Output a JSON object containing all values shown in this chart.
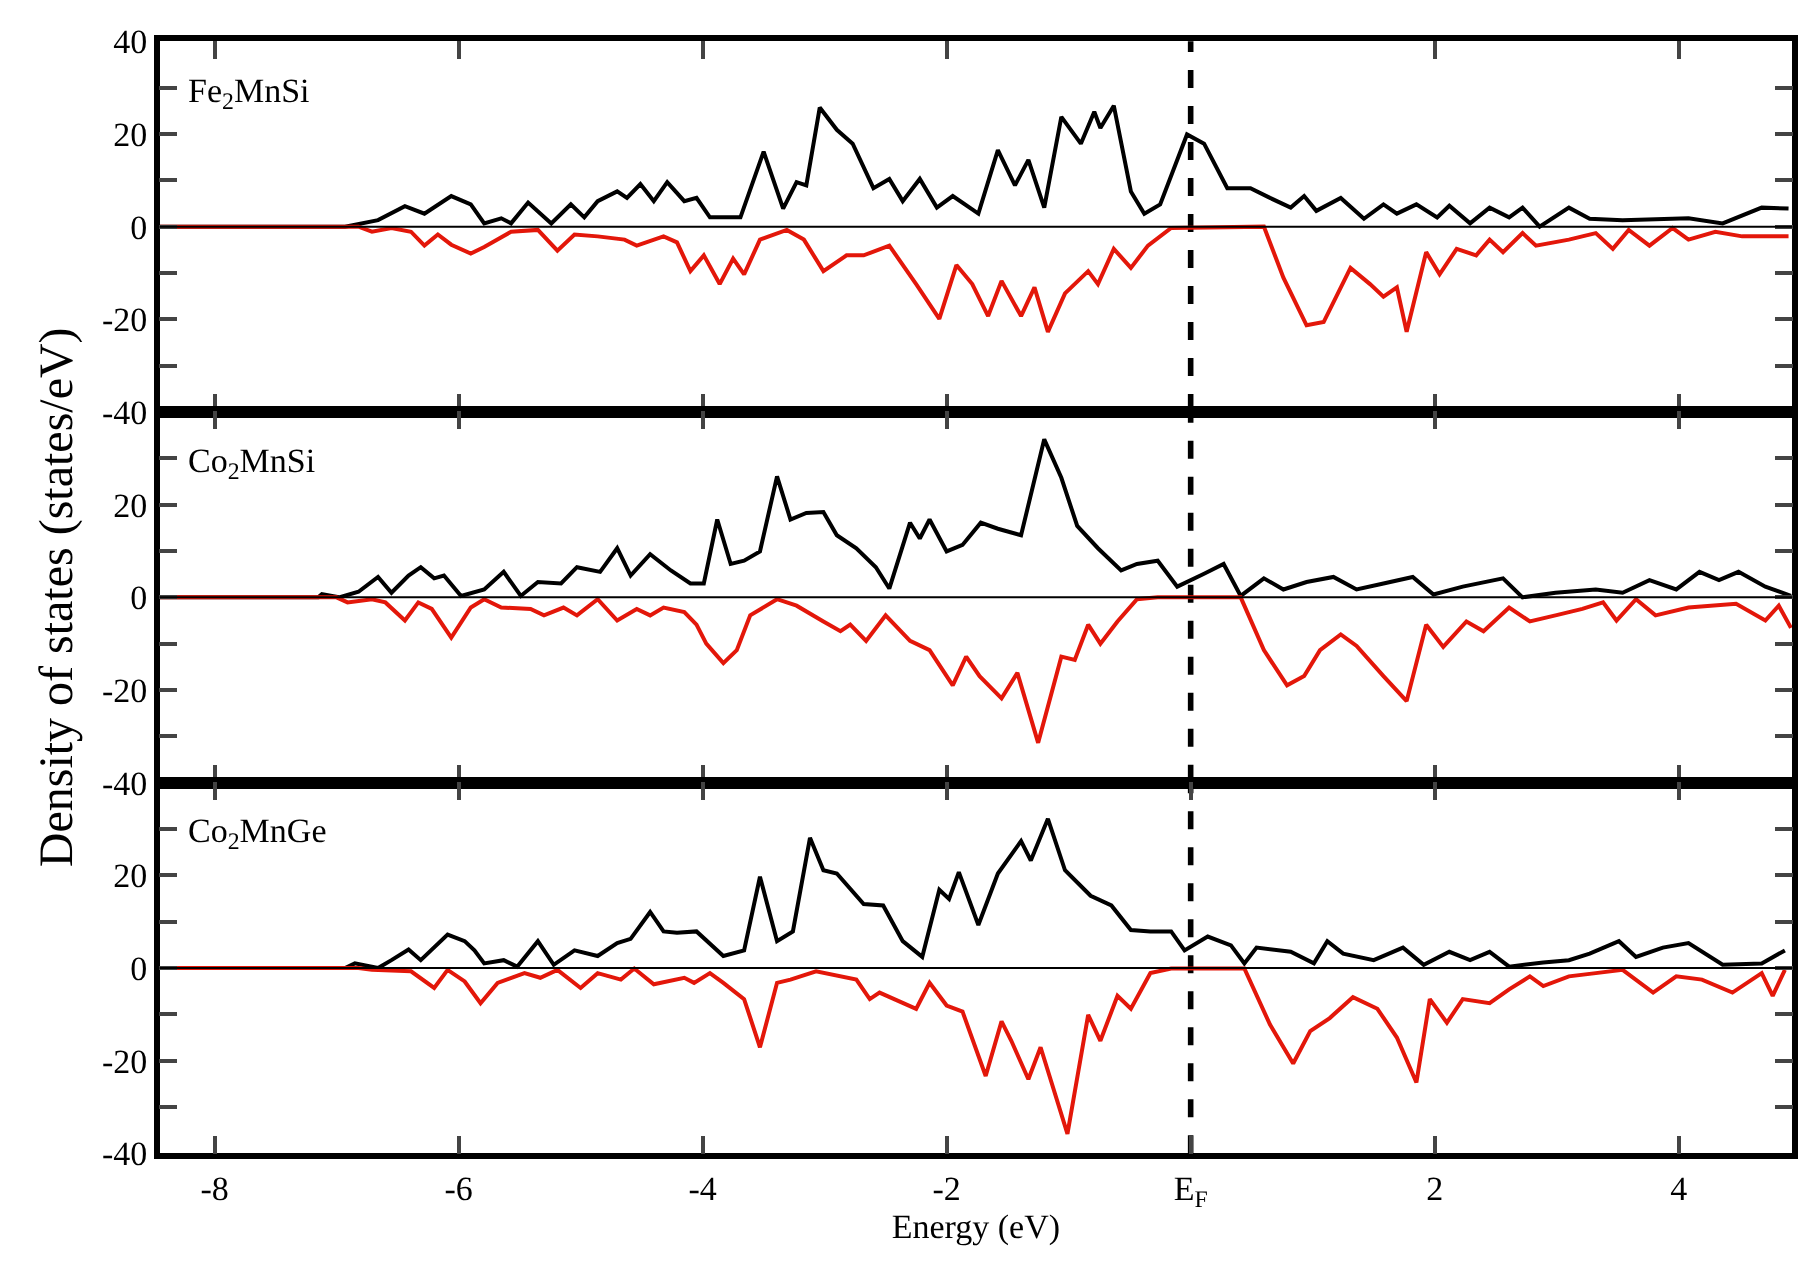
{
  "chart_data": [
    {
      "type": "line",
      "annotations": [
        "Fe$_{2}$MnSi"
      ],
      "xlim": [
        -8.45,
        4.93
      ],
      "xticks": [
        -8,
        -6,
        -4,
        -2,
        2,
        4
      ],
      "ylim": [
        -40,
        40
      ],
      "yticks": [
        -40,
        {
          "value": -30,
          "label": null
        },
        -20,
        {
          "value": -10,
          "label": null
        },
        0,
        {
          "value": 10,
          "label": null
        },
        20,
        {
          "value": 30,
          "label": null
        },
        40
      ],
      "tick_labels": "y",
      "ref_lines": [
        {
          "axis": "x",
          "value": 0,
          "label": null,
          "line_style": "dashed",
          "color": "#000000"
        },
        {
          "axis": "y",
          "value": 0,
          "label": null,
          "color": "#000000"
        }
      ],
      "series": [
        {
          "color": "#000000",
          "x": [
            -8.45,
            -6.93,
            -6.66,
            -6.44,
            -6.28,
            -6.06,
            -5.9,
            -5.79,
            -5.65,
            -5.57,
            -5.43,
            -5.24,
            -5.08,
            -4.97,
            -4.86,
            -4.7,
            -4.62,
            -4.51,
            -4.4,
            -4.29,
            -4.15,
            -4.05,
            -3.94,
            -3.69,
            -3.5,
            -3.34,
            -3.23,
            -3.15,
            -3.04,
            -2.9,
            -2.77,
            -2.6,
            -2.47,
            -2.36,
            -2.22,
            -2.08,
            -1.95,
            -1.74,
            -1.58,
            -1.44,
            -1.33,
            -1.2,
            -1.06,
            -0.9,
            -0.79,
            -0.74,
            -0.63,
            -0.49,
            -0.38,
            -0.25,
            -0.03,
            0.11,
            0.3,
            0.49,
            0.65,
            0.82,
            0.93,
            1.03,
            1.23,
            1.42,
            1.58,
            1.69,
            1.85,
            2.02,
            2.12,
            2.29,
            2.45,
            2.61,
            2.72,
            2.86,
            3.1,
            3.27,
            3.54,
            4.08,
            4.36,
            4.68,
            4.9
          ],
          "values": [
            0,
            0,
            1.4,
            4.4,
            2.8,
            6.6,
            4.8,
            0.7,
            1.8,
            0.7,
            5.2,
            0.7,
            4.8,
            2,
            5.5,
            7.6,
            6.2,
            9.2,
            5.5,
            9.6,
            5.5,
            6.2,
            2,
            2,
            16.2,
            3.9,
            9.6,
            8.9,
            25.7,
            20.9,
            17.9,
            8.3,
            10.3,
            5.5,
            10.3,
            4.1,
            6.6,
            2.8,
            16.5,
            8.9,
            14.4,
            4.1,
            23.7,
            17.9,
            24.8,
            21.3,
            26.1,
            7.6,
            2.8,
            4.8,
            19.9,
            17.9,
            8.3,
            8.3,
            6.2,
            4.1,
            6.6,
            3.4,
            6.2,
            1.7,
            4.8,
            2.8,
            4.8,
            2,
            4.5,
            0.7,
            4.1,
            2,
            4.1,
            0,
            4.1,
            1.7,
            1.4,
            1.8,
            0.7,
            4.1,
            3.9
          ]
        },
        {
          "color": "#e3170a",
          "x": [
            -8.45,
            -6.82,
            -6.71,
            -6.55,
            -6.39,
            -6.28,
            -6.17,
            -6.06,
            -5.9,
            -5.79,
            -5.57,
            -5.35,
            -5.19,
            -5.05,
            -4.86,
            -4.64,
            -4.54,
            -4.32,
            -4.21,
            -4.1,
            -3.99,
            -3.86,
            -3.75,
            -3.66,
            -3.53,
            -3.31,
            -3.17,
            -3.01,
            -2.82,
            -2.68,
            -2.47,
            -2.25,
            -2.06,
            -1.92,
            -1.79,
            -1.66,
            -1.55,
            -1.39,
            -1.28,
            -1.17,
            -1.03,
            -0.84,
            -0.76,
            -0.63,
            -0.49,
            -0.35,
            -0.16,
            0.6,
            0.76,
            0.95,
            1.09,
            1.31,
            1.47,
            1.58,
            1.69,
            1.77,
            1.93,
            2.04,
            2.18,
            2.34,
            2.45,
            2.56,
            2.72,
            2.83,
            3.1,
            3.32,
            3.46,
            3.59,
            3.76,
            3.95,
            4.08,
            4.3,
            4.52,
            4.9
          ],
          "values": [
            0,
            0,
            -1.1,
            -0.3,
            -1.1,
            -4.1,
            -1.7,
            -3.9,
            -5.8,
            -4.4,
            -1.1,
            -0.7,
            -5.2,
            -1.7,
            -2.1,
            -2.8,
            -4.1,
            -2.1,
            -3.4,
            -9.6,
            -6.2,
            -12.4,
            -6.9,
            -10.3,
            -2.8,
            -0.7,
            -2.8,
            -9.6,
            -6.2,
            -6.2,
            -4.1,
            -12.4,
            -19.9,
            -8.3,
            -12.4,
            -19.3,
            -11.7,
            -19.3,
            -13.1,
            -22.7,
            -14.4,
            -9.6,
            -12.4,
            -4.8,
            -8.9,
            -4.1,
            -0.3,
            0,
            -11,
            -21.3,
            -20.6,
            -8.9,
            -12.4,
            -15.1,
            -13.1,
            -22.7,
            -5.5,
            -10.3,
            -4.8,
            -6.2,
            -2.8,
            -5.5,
            -1.4,
            -4.1,
            -2.8,
            -1.4,
            -4.8,
            -0.7,
            -4.1,
            -0.3,
            -2.8,
            -1.1,
            -2.1,
            -2.1
          ]
        }
      ]
    },
    {
      "type": "line",
      "annotations": [
        "Co$_{2}$MnSi"
      ],
      "ylabel": "Density of states (states/eV)",
      "xlim": [
        -8.45,
        4.93
      ],
      "xticks": [
        -8,
        -6,
        -4,
        -2,
        2,
        4
      ],
      "ylim": [
        -40,
        40
      ],
      "yticks": [
        -40,
        {
          "value": -30,
          "label": null
        },
        -20,
        {
          "value": -10,
          "label": null
        },
        0,
        {
          "value": 10,
          "label": null
        },
        20,
        {
          "value": 30,
          "label": null
        },
        {
          "value": 40,
          "label": null
        }
      ],
      "tick_labels": "y",
      "ref_lines": [
        {
          "axis": "x",
          "value": 0,
          "label": null,
          "line_style": "dashed",
          "color": "#000000"
        },
        {
          "axis": "y",
          "value": 0,
          "label": null,
          "color": "#000000"
        }
      ],
      "series": [
        {
          "color": "#000000",
          "x": [
            -8.45,
            -7.15,
            -7.12,
            -6.98,
            -6.82,
            -6.66,
            -6.55,
            -6.41,
            -6.31,
            -6.2,
            -6.12,
            -5.98,
            -5.79,
            -5.63,
            -5.49,
            -5.35,
            -5.16,
            -5.03,
            -4.84,
            -4.7,
            -4.59,
            -4.43,
            -4.26,
            -4.1,
            -3.99,
            -3.88,
            -3.77,
            -3.66,
            -3.53,
            -3.39,
            -3.28,
            -3.15,
            -3.01,
            -2.9,
            -2.74,
            -2.58,
            -2.47,
            -2.3,
            -2.22,
            -2.14,
            -2,
            -1.87,
            -1.72,
            -1.58,
            -1.39,
            -1.2,
            -1.06,
            -0.93,
            -0.76,
            -0.57,
            -0.44,
            -0.27,
            -0.11,
            0.11,
            0.27,
            0.41,
            0.6,
            0.76,
            0.95,
            1.17,
            1.36,
            1.58,
            1.82,
            1.99,
            2.23,
            2.56,
            2.72,
            2.99,
            3.32,
            3.54,
            3.76,
            3.98,
            4.17,
            4.33,
            4.49,
            4.71,
            4.92
          ],
          "values": [
            0,
            0,
            0.7,
            0,
            1.2,
            4.4,
            1,
            4.7,
            6.5,
            4.1,
            4.7,
            0.3,
            1.7,
            5.5,
            0.3,
            3.3,
            3,
            6.5,
            5.5,
            10.6,
            4.7,
            9.3,
            5.8,
            3,
            3,
            16.8,
            7.2,
            7.9,
            9.9,
            26.1,
            16.8,
            18.2,
            18.4,
            13.4,
            10.6,
            6.5,
            1.9,
            16.1,
            12.7,
            16.8,
            9.9,
            11.3,
            16.1,
            14.8,
            13.4,
            34.1,
            25.8,
            15.4,
            10.6,
            5.8,
            7.2,
            7.9,
            2.3,
            5.1,
            7.2,
            0.3,
            4.1,
            1.7,
            3.3,
            4.4,
            1.7,
            3,
            4.4,
            0.6,
            2.3,
            4.1,
            0,
            1,
            1.7,
            1,
            3.7,
            1.7,
            5.5,
            3.7,
            5.5,
            2.3,
            0.3
          ]
        },
        {
          "color": "#e3170a",
          "x": [
            -8.45,
            -7,
            -6.91,
            -6.71,
            -6.6,
            -6.44,
            -6.33,
            -6.22,
            -6.06,
            -5.9,
            -5.79,
            -5.65,
            -5.41,
            -5.3,
            -5.14,
            -5.03,
            -4.86,
            -4.7,
            -4.54,
            -4.43,
            -4.32,
            -4.15,
            -4.05,
            -3.97,
            -3.83,
            -3.72,
            -3.61,
            -3.39,
            -3.23,
            -3.01,
            -2.87,
            -2.79,
            -2.66,
            -2.5,
            -2.3,
            -2.14,
            -1.95,
            -1.84,
            -1.73,
            -1.55,
            -1.42,
            -1.25,
            -1.06,
            -0.95,
            -0.84,
            -0.74,
            -0.6,
            -0.44,
            -0.27,
            0.41,
            0.6,
            0.79,
            0.93,
            1.06,
            1.23,
            1.36,
            1.58,
            1.77,
            1.93,
            2.07,
            2.26,
            2.4,
            2.61,
            2.78,
            2.99,
            3.21,
            3.38,
            3.49,
            3.65,
            3.81,
            4.08,
            4.47,
            4.71,
            4.82,
            4.92
          ],
          "values": [
            0,
            0,
            -1.1,
            -0.4,
            -1.1,
            -5,
            -1.1,
            -2.5,
            -8.7,
            -2.2,
            -0.4,
            -2.2,
            -2.5,
            -3.9,
            -2.2,
            -3.9,
            -0.4,
            -5,
            -2.5,
            -3.9,
            -2.2,
            -3.2,
            -5.9,
            -10,
            -14.2,
            -11.4,
            -3.9,
            -0.4,
            -1.8,
            -5.2,
            -7.3,
            -5.9,
            -9.4,
            -3.9,
            -9.4,
            -11.4,
            -19,
            -12.8,
            -17,
            -21.8,
            -16.3,
            -31.4,
            -12.8,
            -13.5,
            -5.9,
            -10,
            -5.2,
            -0.4,
            0,
            0,
            -11.4,
            -19,
            -17,
            -11.4,
            -8,
            -10.5,
            -17,
            -22.4,
            -5.9,
            -10.7,
            -5.2,
            -7.3,
            -2.2,
            -5.2,
            -3.9,
            -2.5,
            -1.1,
            -5,
            -0.4,
            -3.9,
            -2.2,
            -1.4,
            -5,
            -1.8,
            -6.6
          ]
        }
      ]
    },
    {
      "type": "line",
      "annotations": [
        "Co$_{2}$MnGe"
      ],
      "xlabel": "Energy (eV)",
      "xlim": [
        -8.45,
        4.93
      ],
      "xticks": [
        -8,
        -6,
        -4,
        -2,
        {
          "value": 0,
          "label": "E$_{F}$"
        },
        2,
        4
      ],
      "ylim": [
        -40,
        40
      ],
      "yticks": [
        -40,
        {
          "value": -30,
          "label": null
        },
        -20,
        {
          "value": -10,
          "label": null
        },
        0,
        {
          "value": 10,
          "label": null
        },
        20,
        {
          "value": 30,
          "label": null
        },
        {
          "value": 40,
          "label": null
        }
      ],
      "ref_lines": [
        {
          "axis": "x",
          "value": 0,
          "label": null,
          "line_style": "dashed",
          "color": "#000000"
        },
        {
          "axis": "y",
          "value": 0,
          "label": null,
          "color": "#000000"
        }
      ],
      "series": [
        {
          "color": "#000000",
          "x": [
            -8.45,
            -6.93,
            -6.85,
            -6.66,
            -6.55,
            -6.41,
            -6.31,
            -6.09,
            -5.95,
            -5.87,
            -5.79,
            -5.63,
            -5.52,
            -5.35,
            -5.22,
            -5.05,
            -4.86,
            -4.7,
            -4.59,
            -4.43,
            -4.32,
            -4.21,
            -4.05,
            -3.83,
            -3.66,
            -3.53,
            -3.39,
            -3.26,
            -3.12,
            -3.01,
            -2.9,
            -2.68,
            -2.52,
            -2.36,
            -2.2,
            -2.06,
            -1.98,
            -1.9,
            -1.74,
            -1.58,
            -1.39,
            -1.31,
            -1.17,
            -1.03,
            -0.82,
            -0.65,
            -0.49,
            -0.33,
            -0.16,
            -0.05,
            0.14,
            0.33,
            0.44,
            0.54,
            0.82,
            1.01,
            1.12,
            1.25,
            1.5,
            1.74,
            1.91,
            2.12,
            2.29,
            2.45,
            2.61,
            2.89,
            3.1,
            3.27,
            3.51,
            3.65,
            3.87,
            4.08,
            4.36,
            4.68,
            4.87
          ],
          "values": [
            0,
            0,
            1,
            0,
            1.7,
            4,
            1.7,
            7.2,
            5.8,
            3.8,
            1,
            1.7,
            0.3,
            5.8,
            0.7,
            3.8,
            2.6,
            5.4,
            6.3,
            12.1,
            7.9,
            7.6,
            7.9,
            2.6,
            3.8,
            19.7,
            5.8,
            7.9,
            28.1,
            21.1,
            20.4,
            13.8,
            13.5,
            5.8,
            2.4,
            16.9,
            14.9,
            20.7,
            9.3,
            20.4,
            27.4,
            23.2,
            32.2,
            21.1,
            15.6,
            13.5,
            8.2,
            7.9,
            7.9,
            3.8,
            6.8,
            4.9,
            1,
            4.4,
            3.5,
            1,
            5.8,
            3.1,
            1.7,
            4.4,
            0.7,
            3.5,
            1.7,
            3.5,
            0.3,
            1.2,
            1.7,
            3.1,
            5.8,
            2.4,
            4.4,
            5.4,
            0.7,
            1,
            3.8
          ]
        },
        {
          "color": "#e3170a",
          "x": [
            -8.45,
            -6.82,
            -6.71,
            -6.39,
            -6.2,
            -6.09,
            -5.95,
            -5.82,
            -5.68,
            -5.46,
            -5.33,
            -5.19,
            -5,
            -4.86,
            -4.67,
            -4.56,
            -4.4,
            -4.15,
            -4.07,
            -3.94,
            -3.83,
            -3.66,
            -3.53,
            -3.39,
            -3.28,
            -3.07,
            -2.74,
            -2.63,
            -2.55,
            -2.25,
            -2.14,
            -2,
            -1.87,
            -1.68,
            -1.55,
            -1.47,
            -1.33,
            -1.23,
            -1.01,
            -0.84,
            -0.74,
            -0.6,
            -0.49,
            -0.33,
            -0.16,
            0.44,
            0.65,
            0.84,
            0.98,
            1.14,
            1.33,
            1.53,
            1.69,
            1.85,
            1.96,
            2.1,
            2.23,
            2.45,
            2.61,
            2.78,
            2.89,
            3.1,
            3.32,
            3.54,
            3.79,
            3.98,
            4.19,
            4.44,
            4.68,
            4.77,
            4.87
          ],
          "values": [
            0,
            0,
            -0.4,
            -0.7,
            -4.3,
            -0.4,
            -2.9,
            -7.6,
            -3.2,
            -1.1,
            -2.1,
            -0.4,
            -4.3,
            -1.1,
            -2.5,
            -0.1,
            -3.5,
            -2.1,
            -3.2,
            -1.1,
            -3.2,
            -6.7,
            -17.1,
            -3.2,
            -2.5,
            -0.7,
            -2.5,
            -6.7,
            -5.3,
            -8.8,
            -3.2,
            -8.1,
            -9.4,
            -23.3,
            -11.5,
            -15.7,
            -24,
            -17.1,
            -35.8,
            -10.1,
            -15.7,
            -6,
            -8.8,
            -1.1,
            -0.1,
            -0.1,
            -12.2,
            -20.6,
            -13.6,
            -10.8,
            -6.3,
            -8.8,
            -15,
            -24.7,
            -6.7,
            -11.8,
            -6.7,
            -7.6,
            -4.6,
            -1.8,
            -3.9,
            -1.8,
            -1.1,
            -0.4,
            -5.3,
            -1.8,
            -2.5,
            -5.3,
            -1.1,
            -6,
            -0.4
          ]
        }
      ]
    }
  ]
}
